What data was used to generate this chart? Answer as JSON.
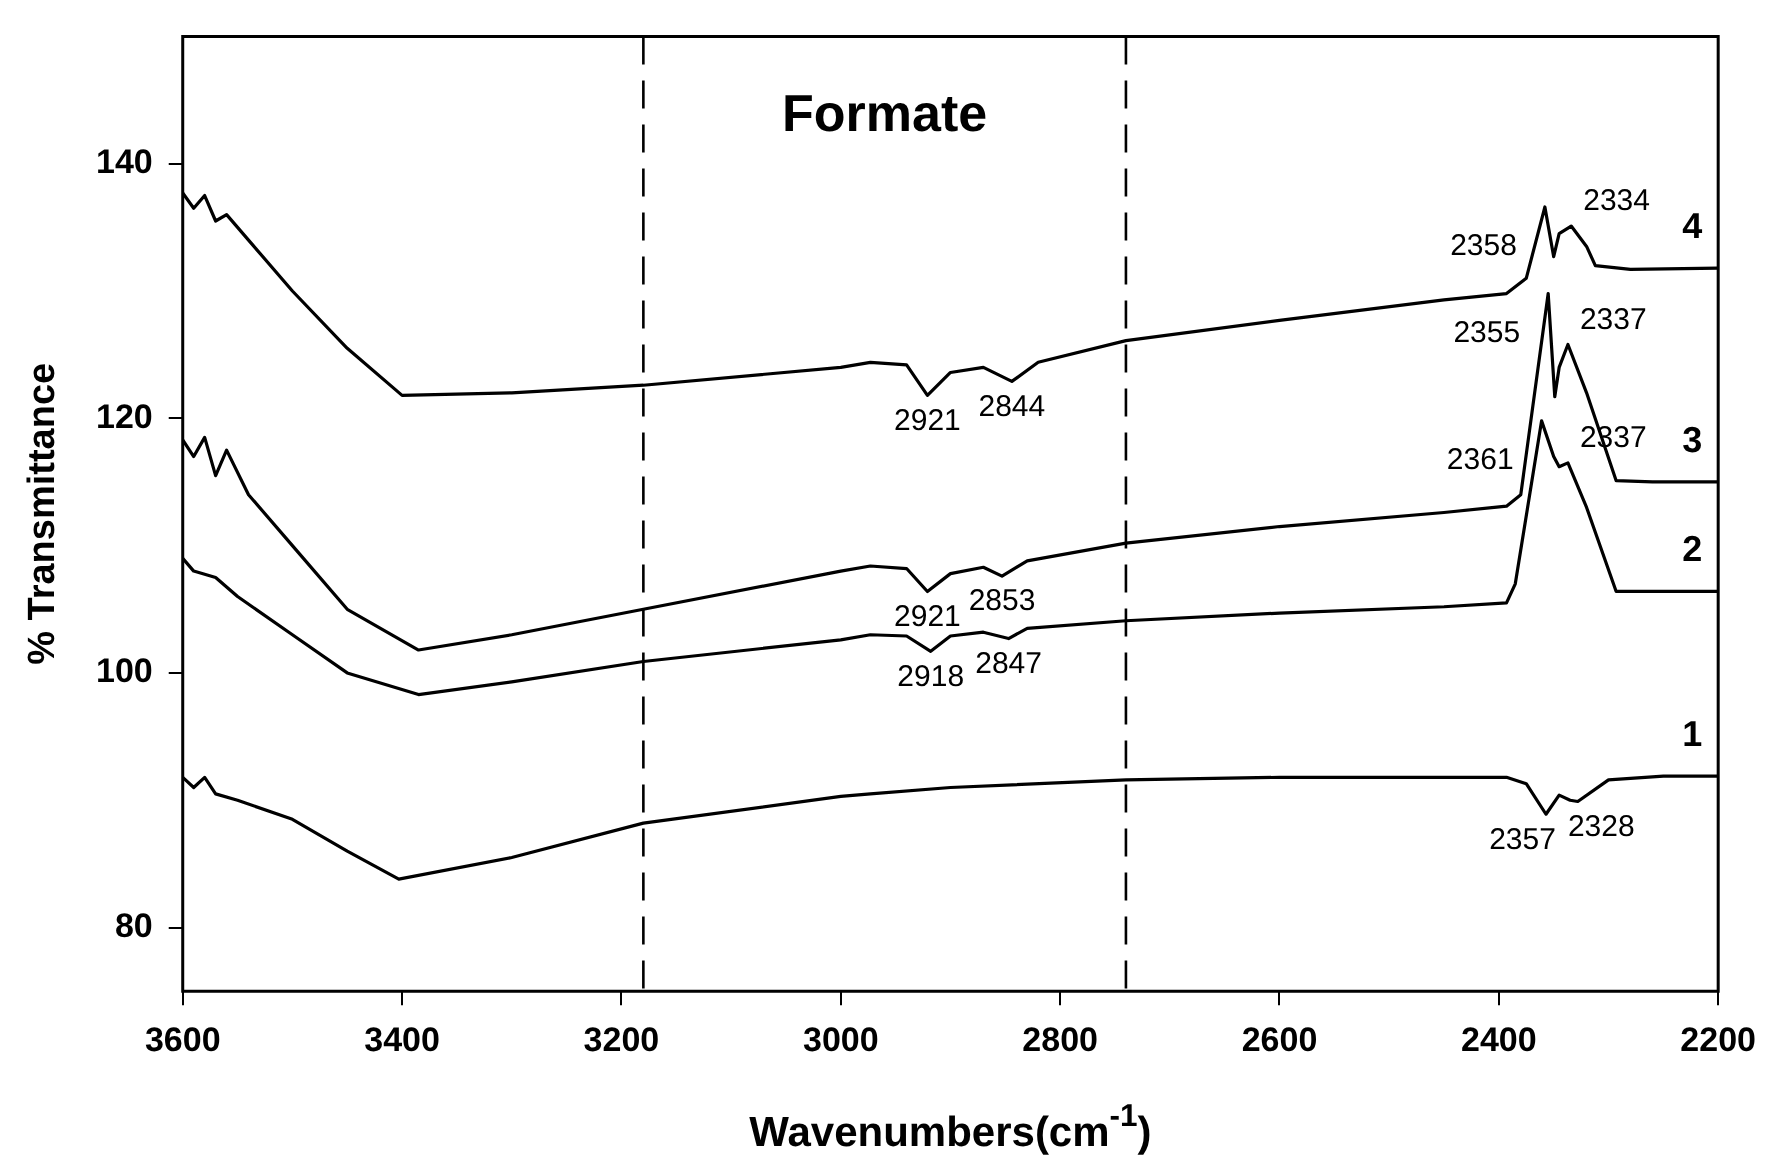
{
  "chart_data": {
    "type": "line",
    "title": "Formate",
    "xlabel": "Wavenumbers(cm$^{-1}$)",
    "ylabel": "% Transmittance",
    "xlim": [
      3600,
      2200
    ],
    "xticks": [
      3600,
      3400,
      3200,
      3000,
      2800,
      2600,
      2400,
      2200
    ],
    "ylim": [
      75,
      150
    ],
    "yticks": [
      80,
      100,
      120,
      140
    ],
    "grid": false,
    "legend": false,
    "marker": "none",
    "line_style": "solid",
    "series": [
      {
        "name": "4",
        "color": "#000000",
        "x": [
          3600,
          3590,
          3580,
          3570,
          3560,
          3540,
          3500,
          3450,
          3400,
          3300,
          3180,
          3000,
          2973,
          2940,
          2921,
          2900,
          2870,
          2844,
          2820,
          2740,
          2600,
          2450,
          2393,
          2375,
          2358,
          2350,
          2345,
          2334,
          2320,
          2312,
          2280,
          2200
        ],
        "values": [
          137.7,
          136.5,
          137.5,
          135.5,
          136,
          134,
          130,
          125.5,
          121.8,
          122,
          122.6,
          124,
          124.4,
          124.2,
          121.8,
          123.6,
          124,
          122.9,
          124.4,
          126.1,
          127.7,
          129.3,
          129.8,
          131,
          136.6,
          132.7,
          134.5,
          135.1,
          133.5,
          132,
          131.7,
          131.8
        ]
      },
      {
        "name": "3",
        "color": "#000000",
        "x": [
          3600,
          3590,
          3580,
          3570,
          3560,
          3540,
          3500,
          3450,
          3385,
          3300,
          3180,
          3000,
          2973,
          2940,
          2921,
          2900,
          2870,
          2853,
          2830,
          2740,
          2600,
          2450,
          2393,
          2380,
          2355,
          2349,
          2345,
          2337,
          2320,
          2293,
          2260,
          2200
        ],
        "values": [
          118.3,
          117,
          118.5,
          115.5,
          117.5,
          114,
          110,
          105,
          101.8,
          103,
          105,
          108,
          108.4,
          108.2,
          106.4,
          107.8,
          108.3,
          107.6,
          108.8,
          110.2,
          111.5,
          112.6,
          113.1,
          114,
          129.8,
          121.7,
          124,
          125.8,
          122,
          115.1,
          115,
          115
        ]
      },
      {
        "name": "2",
        "color": "#000000",
        "x": [
          3600,
          3590,
          3570,
          3550,
          3500,
          3450,
          3385,
          3300,
          3180,
          3000,
          2973,
          2940,
          2918,
          2900,
          2870,
          2847,
          2830,
          2740,
          2600,
          2450,
          2393,
          2385,
          2361,
          2350,
          2345,
          2337,
          2320,
          2293,
          2260,
          2200
        ],
        "values": [
          109,
          108,
          107.5,
          106,
          103,
          100,
          98.3,
          99.3,
          100.9,
          102.6,
          103,
          102.9,
          101.7,
          102.9,
          103.2,
          102.7,
          103.5,
          104.1,
          104.7,
          105.2,
          105.5,
          107,
          119.8,
          117,
          116.2,
          116.5,
          113,
          106.4,
          106.4,
          106.4
        ]
      },
      {
        "name": "1",
        "color": "#000000",
        "x": [
          3600,
          3590,
          3580,
          3570,
          3550,
          3500,
          3450,
          3403,
          3300,
          3180,
          3000,
          2973,
          2900,
          2740,
          2600,
          2450,
          2393,
          2375,
          2357,
          2345,
          2335,
          2328,
          2300,
          2250,
          2200
        ],
        "values": [
          91.8,
          91,
          91.8,
          90.5,
          90,
          88.5,
          86,
          83.8,
          85.5,
          88.2,
          90.3,
          90.5,
          91,
          91.6,
          91.8,
          91.8,
          91.8,
          91.3,
          88.9,
          90.4,
          90,
          89.9,
          91.6,
          91.9,
          91.9
        ]
      }
    ],
    "ref_lines": [
      {
        "axis": "x",
        "value": 3180,
        "line_style": "dashed",
        "color": "#000000"
      },
      {
        "axis": "x",
        "value": 2740,
        "line_style": "dashed",
        "color": "#000000"
      }
    ],
    "annotations": [
      {
        "text": "2921",
        "x": 2921,
        "y": 121.8
      },
      {
        "text": "2844",
        "x": 2844,
        "y": 122.9
      },
      {
        "text": "2358",
        "x": 2358,
        "y": 136.6
      },
      {
        "text": "2334",
        "x": 2334,
        "y": 135.1
      },
      {
        "text": "2355",
        "x": 2355,
        "y": 129.8
      },
      {
        "text": "2337",
        "x": 2337,
        "y": 125.8
      },
      {
        "text": "2921",
        "x": 2921,
        "y": 106.4
      },
      {
        "text": "2853",
        "x": 2853,
        "y": 107.6
      },
      {
        "text": "2918",
        "x": 2918,
        "y": 101.7
      },
      {
        "text": "2847",
        "x": 2847,
        "y": 102.7
      },
      {
        "text": "2361",
        "x": 2361,
        "y": 119.8
      },
      {
        "text": "2337",
        "x": 2337,
        "y": 116.5
      },
      {
        "text": "2357",
        "x": 2357,
        "y": 88.9
      },
      {
        "text": "2328",
        "x": 2328,
        "y": 89.9
      }
    ]
  }
}
